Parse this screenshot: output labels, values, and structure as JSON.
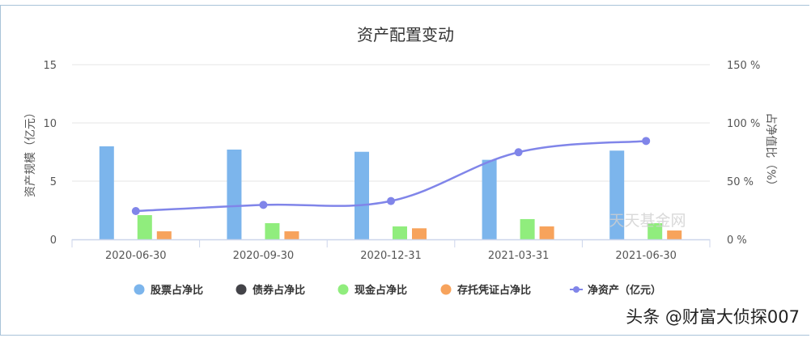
{
  "chart_data": {
    "type": "bar",
    "title": "资产配置变动",
    "categories": [
      "2020-06-30",
      "2020-09-30",
      "2020-12-31",
      "2021-03-31",
      "2021-06-30"
    ],
    "ylabel_left": "资产规模（亿元）",
    "ylabel_right": "占净值比（%）",
    "ylim_left": [
      0,
      15
    ],
    "ylim_right": [
      0,
      150
    ],
    "left_ticks": [
      "0",
      "5",
      "10",
      "15"
    ],
    "right_ticks": [
      "0 %",
      "50 %",
      "100 %",
      "150 %"
    ],
    "grid": true,
    "legend_position": "bottom",
    "series": [
      {
        "name": "股票占净比",
        "type": "bar",
        "axis": "right",
        "color": "#7cb5ec",
        "values": [
          79.9,
          77.1,
          75.2,
          68.3,
          76.2
        ]
      },
      {
        "name": "债券占净比",
        "type": "bar",
        "axis": "right",
        "color": "#434348",
        "values": [
          0,
          0,
          0,
          0,
          0
        ]
      },
      {
        "name": "现金占净比",
        "type": "bar",
        "axis": "right",
        "color": "#90ed7d",
        "values": [
          20.8,
          13.9,
          11.1,
          17.4,
          13.9
        ]
      },
      {
        "name": "存托凭证占净比",
        "type": "bar",
        "axis": "right",
        "color": "#f7a35c",
        "values": [
          6.9,
          6.9,
          9.5,
          11.1,
          7.6
        ]
      },
      {
        "name": "净资产（亿元）",
        "type": "line",
        "axis": "left",
        "color": "#8085e9",
        "values": [
          2.43,
          2.96,
          3.29,
          7.48,
          8.45
        ]
      }
    ],
    "watermark": "天天基金网"
  },
  "overlay": {
    "source_credit": "头条 @财富大侦探007"
  }
}
